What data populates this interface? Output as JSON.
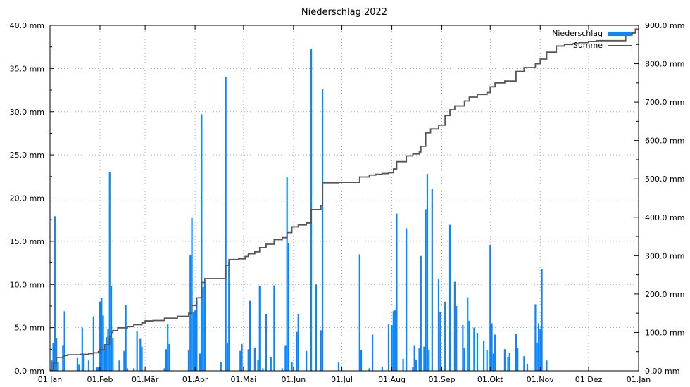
{
  "chart_data": {
    "type": "bar",
    "title": "Niederschlag 2022",
    "x_ticks": [
      "01.Jan",
      "01.Feb",
      "01.Mär",
      "01.Apr",
      "01.Mai",
      "01.Jun",
      "01.Jul",
      "01.Aug",
      "01.Sep",
      "01.Okt",
      "01.Nov",
      "01.Dez",
      "01.Jan"
    ],
    "x_tick_day_of_year": [
      1,
      32,
      60,
      91,
      121,
      152,
      182,
      213,
      244,
      274,
      305,
      335,
      366
    ],
    "y_left_ticks": [
      "0.0 mm",
      "5.0 mm",
      "10.0 mm",
      "15.0 mm",
      "20.0 mm",
      "25.0 mm",
      "30.0 mm",
      "35.0 mm",
      "40.0 mm"
    ],
    "y_right_ticks": [
      "0.00 mm",
      "100.0 mm",
      "200.0 mm",
      "300.0 mm",
      "400.0 mm",
      "500.0 mm",
      "600.0 mm",
      "700.0 mm",
      "800.0 mm",
      "900.0 mm"
    ],
    "ylim_left": [
      0,
      40
    ],
    "ylim_right": [
      0,
      900
    ],
    "grid": true,
    "legend_position": "top-right",
    "colors": {
      "bars": "#0a84ff",
      "sum_line": "#555555",
      "grid": "#9a9a9a"
    },
    "series": [
      {
        "name": "Niederschlag",
        "axis": "left",
        "style": "bar",
        "points": [
          [
            2,
            1.2
          ],
          [
            3,
            3.2
          ],
          [
            4,
            17.9
          ],
          [
            5,
            3.8
          ],
          [
            6,
            1.0
          ],
          [
            9,
            2.9
          ],
          [
            10,
            6.9
          ],
          [
            18,
            1.5
          ],
          [
            19,
            0.7
          ],
          [
            21,
            5.0
          ],
          [
            22,
            1.8
          ],
          [
            25,
            1.2
          ],
          [
            28,
            6.3
          ],
          [
            30,
            0.4
          ],
          [
            31,
            0.4
          ],
          [
            32,
            8.0
          ],
          [
            33,
            8.4
          ],
          [
            34,
            6.4
          ],
          [
            35,
            2.5
          ],
          [
            36,
            3.9
          ],
          [
            37,
            4.8
          ],
          [
            38,
            23.0
          ],
          [
            39,
            9.8
          ],
          [
            40,
            3.8
          ],
          [
            44,
            1.2
          ],
          [
            47,
            2.3
          ],
          [
            48,
            7.6
          ],
          [
            49,
            0.3
          ],
          [
            53,
            0.3
          ],
          [
            55,
            4.6
          ],
          [
            57,
            3.7
          ],
          [
            58,
            2.8
          ],
          [
            72,
            0.3
          ],
          [
            73,
            2.5
          ],
          [
            74,
            5.4
          ],
          [
            75,
            3.1
          ],
          [
            87,
            2.4
          ],
          [
            88,
            13.4
          ],
          [
            89,
            17.7
          ],
          [
            90,
            6.8
          ],
          [
            91,
            7.0
          ],
          [
            92,
            8.1
          ],
          [
            94,
            2.0
          ],
          [
            95,
            29.7
          ],
          [
            96,
            9.7
          ],
          [
            97,
            10.2
          ],
          [
            107,
            1.0
          ],
          [
            110,
            34.0
          ],
          [
            111,
            3.2
          ],
          [
            112,
            12.6
          ],
          [
            119,
            2.3
          ],
          [
            120,
            3.1
          ],
          [
            124,
            2.5
          ],
          [
            125,
            8.1
          ],
          [
            128,
            2.7
          ],
          [
            130,
            1.3
          ],
          [
            131,
            9.8
          ],
          [
            133,
            0.3
          ],
          [
            135,
            6.6
          ],
          [
            138,
            1.6
          ],
          [
            140,
            9.9
          ],
          [
            145,
            0.3
          ],
          [
            147,
            2.9
          ],
          [
            148,
            22.4
          ],
          [
            149,
            14.8
          ],
          [
            151,
            1.0
          ],
          [
            154,
            4.5
          ],
          [
            155,
            6.6
          ],
          [
            160,
            2.3
          ],
          [
            163,
            37.3
          ],
          [
            166,
            10.0
          ],
          [
            169,
            4.7
          ],
          [
            170,
            32.6
          ],
          [
            180,
            1.0
          ],
          [
            193,
            13.5
          ],
          [
            194,
            2.4
          ],
          [
            199,
            0.3
          ],
          [
            201,
            4.2
          ],
          [
            207,
            0.5
          ],
          [
            211,
            5.4
          ],
          [
            213,
            5.3
          ],
          [
            214,
            6.9
          ],
          [
            215,
            7.0
          ],
          [
            216,
            18.2
          ],
          [
            220,
            1.4
          ],
          [
            222,
            16.5
          ],
          [
            226,
            0.4
          ],
          [
            227,
            2.9
          ],
          [
            228,
            1.3
          ],
          [
            230,
            2.6
          ],
          [
            231,
            13.3
          ],
          [
            233,
            2.8
          ],
          [
            234,
            18.7
          ],
          [
            235,
            22.8
          ],
          [
            236,
            2.4
          ],
          [
            238,
            21.1
          ],
          [
            242,
            10.6
          ],
          [
            243,
            6.8
          ],
          [
            246,
            8.0
          ],
          [
            249,
            16.9
          ],
          [
            252,
            10.3
          ],
          [
            253,
            7.5
          ],
          [
            257,
            5.3
          ],
          [
            258,
            2.6
          ],
          [
            260,
            8.5
          ],
          [
            261,
            5.8
          ],
          [
            264,
            5.0
          ],
          [
            266,
            4.4
          ],
          [
            270,
            3.5
          ],
          [
            272,
            2.4
          ],
          [
            274,
            14.6
          ],
          [
            275,
            5.5
          ],
          [
            276,
            2.0
          ],
          [
            277,
            4.2
          ],
          [
            283,
            2.5
          ],
          [
            285,
            1.6
          ],
          [
            286,
            2.1
          ],
          [
            290,
            4.3
          ],
          [
            291,
            2.6
          ],
          [
            295,
            1.7
          ],
          [
            297,
            0.8
          ],
          [
            302,
            7.7
          ],
          [
            303,
            3.2
          ],
          [
            304,
            5.5
          ],
          [
            305,
            4.9
          ],
          [
            306,
            11.8
          ],
          [
            309,
            1.2
          ]
        ]
      },
      {
        "name": "Summe",
        "axis": "right",
        "style": "step-line",
        "points": [
          [
            1,
            1
          ],
          [
            3,
            20
          ],
          [
            5,
            35
          ],
          [
            9,
            38
          ],
          [
            10,
            40
          ],
          [
            12,
            42
          ],
          [
            20,
            43
          ],
          [
            25,
            45
          ],
          [
            28,
            47
          ],
          [
            31,
            50
          ],
          [
            32,
            55
          ],
          [
            35,
            68
          ],
          [
            38,
            90
          ],
          [
            39,
            100
          ],
          [
            40,
            105
          ],
          [
            43,
            112
          ],
          [
            49,
            115
          ],
          [
            53,
            120
          ],
          [
            58,
            125
          ],
          [
            60,
            130
          ],
          [
            65,
            131
          ],
          [
            72,
            137
          ],
          [
            80,
            142
          ],
          [
            87,
            150
          ],
          [
            89,
            170
          ],
          [
            92,
            190
          ],
          [
            95,
            230
          ],
          [
            97,
            240
          ],
          [
            107,
            240
          ],
          [
            110,
            275
          ],
          [
            112,
            290
          ],
          [
            118,
            292
          ],
          [
            122,
            298
          ],
          [
            124,
            305
          ],
          [
            128,
            310
          ],
          [
            131,
            321
          ],
          [
            135,
            330
          ],
          [
            140,
            342
          ],
          [
            145,
            347
          ],
          [
            148,
            360
          ],
          [
            151,
            375
          ],
          [
            155,
            380
          ],
          [
            160,
            385
          ],
          [
            163,
            420
          ],
          [
            169,
            430
          ],
          [
            170,
            490
          ],
          [
            180,
            491
          ],
          [
            188,
            491
          ],
          [
            193,
            505
          ],
          [
            199,
            510
          ],
          [
            203,
            512
          ],
          [
            207,
            514
          ],
          [
            211,
            516
          ],
          [
            214,
            526
          ],
          [
            216,
            545
          ],
          [
            222,
            560
          ],
          [
            226,
            565
          ],
          [
            230,
            570
          ],
          [
            231,
            585
          ],
          [
            234,
            620
          ],
          [
            237,
            630
          ],
          [
            242,
            640
          ],
          [
            246,
            665
          ],
          [
            249,
            680
          ],
          [
            252,
            690
          ],
          [
            258,
            703
          ],
          [
            261,
            713
          ],
          [
            266,
            720
          ],
          [
            272,
            725
          ],
          [
            274,
            740
          ],
          [
            277,
            750
          ],
          [
            283,
            755
          ],
          [
            290,
            780
          ],
          [
            295,
            790
          ],
          [
            302,
            800
          ],
          [
            305,
            812
          ],
          [
            309,
            830
          ],
          [
            315,
            846
          ],
          [
            320,
            850
          ],
          [
            325,
            852
          ],
          [
            329,
            855
          ],
          [
            335,
            858
          ],
          [
            340,
            860
          ],
          [
            350,
            860
          ],
          [
            356,
            860
          ],
          [
            358,
            875
          ],
          [
            362,
            880
          ],
          [
            364,
            890
          ],
          [
            366,
            890
          ]
        ]
      }
    ],
    "legend": [
      {
        "label": "Niederschlag",
        "style": "bar"
      },
      {
        "label": "Summe",
        "style": "line"
      }
    ]
  }
}
